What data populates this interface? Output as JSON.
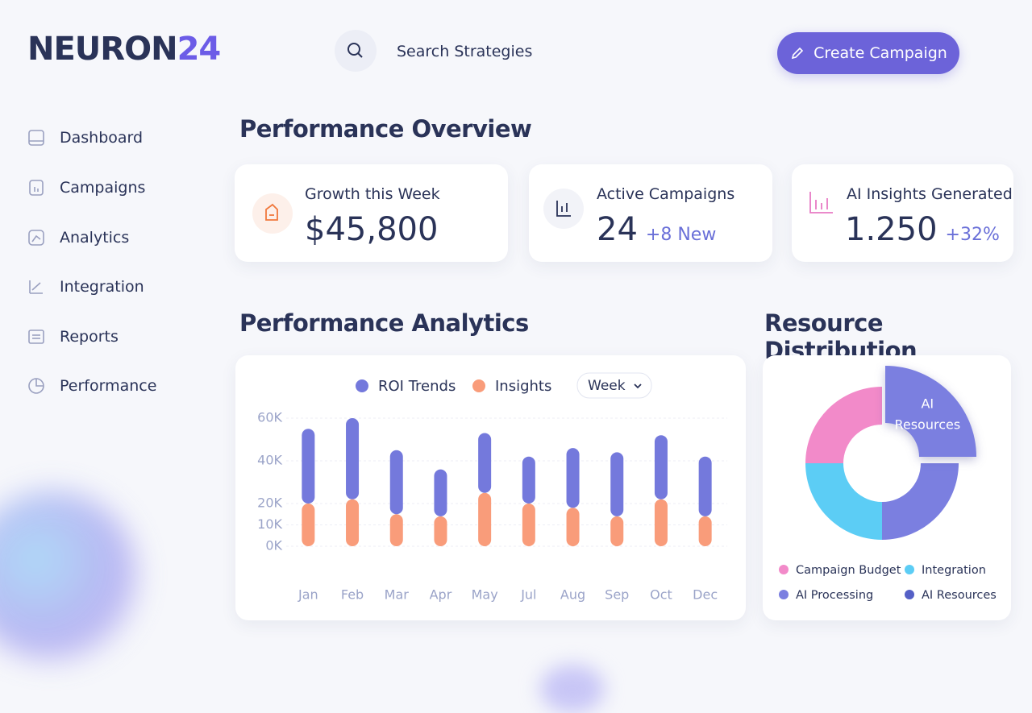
{
  "header": {
    "brand": {
      "name": "NEURON",
      "suffix": "24"
    },
    "search": "Search Strategies",
    "button": "Create Campaign"
  },
  "sidebar": {
    "items": [
      "Dashboard",
      "Campaigns",
      "Analytics",
      "Integration",
      "Reports",
      "Performance"
    ]
  },
  "overview": {
    "title": "Performance Overview",
    "cards": [
      {
        "label": "Growth this Week",
        "value": "$45,800"
      },
      {
        "label": "Active Campaigns",
        "value": "24",
        "delta": "+8 New"
      },
      {
        "label": "AI Insights Generated",
        "value": "1.250",
        "delta": "+32%"
      }
    ]
  },
  "chart_data": [
    {
      "type": "bar",
      "stacked": true,
      "title": "Performance Analytics",
      "period": "Week",
      "categories": [
        "Jan",
        "Feb",
        "Mar",
        "Apr",
        "May",
        "Jul",
        "Aug",
        "Sep",
        "Oct",
        "Dec"
      ],
      "series": [
        {
          "name": "ROI Trends",
          "color": "#7479dc",
          "values": [
            35000,
            38000,
            30000,
            22000,
            28000,
            22000,
            28000,
            30000,
            30000,
            28000
          ]
        },
        {
          "name": "Insights",
          "color": "#f99c7a",
          "values": [
            20000,
            22000,
            15000,
            14000,
            25000,
            20000,
            18000,
            14000,
            22000,
            14000
          ]
        }
      ],
      "ylim": [
        0,
        60000
      ],
      "yticks": [
        {
          "value": 0,
          "label": "0K"
        },
        {
          "value": 10000,
          "label": "10K"
        },
        {
          "value": 20000,
          "label": "20K"
        },
        {
          "value": 40000,
          "label": "40K"
        },
        {
          "value": 60000,
          "label": "60K"
        }
      ],
      "grid": true
    },
    {
      "type": "pie",
      "donut": true,
      "title": "Resource Distribution",
      "categories": [
        "Campaign Budget",
        "Integration",
        "AI Processing",
        "AI Resources"
      ],
      "values": [
        25,
        25,
        25,
        25
      ],
      "colors": [
        "#f28ac9",
        "#5ccdf5",
        "#7b7fe0",
        "#5560c6"
      ],
      "annotation": "AI Resources"
    }
  ]
}
